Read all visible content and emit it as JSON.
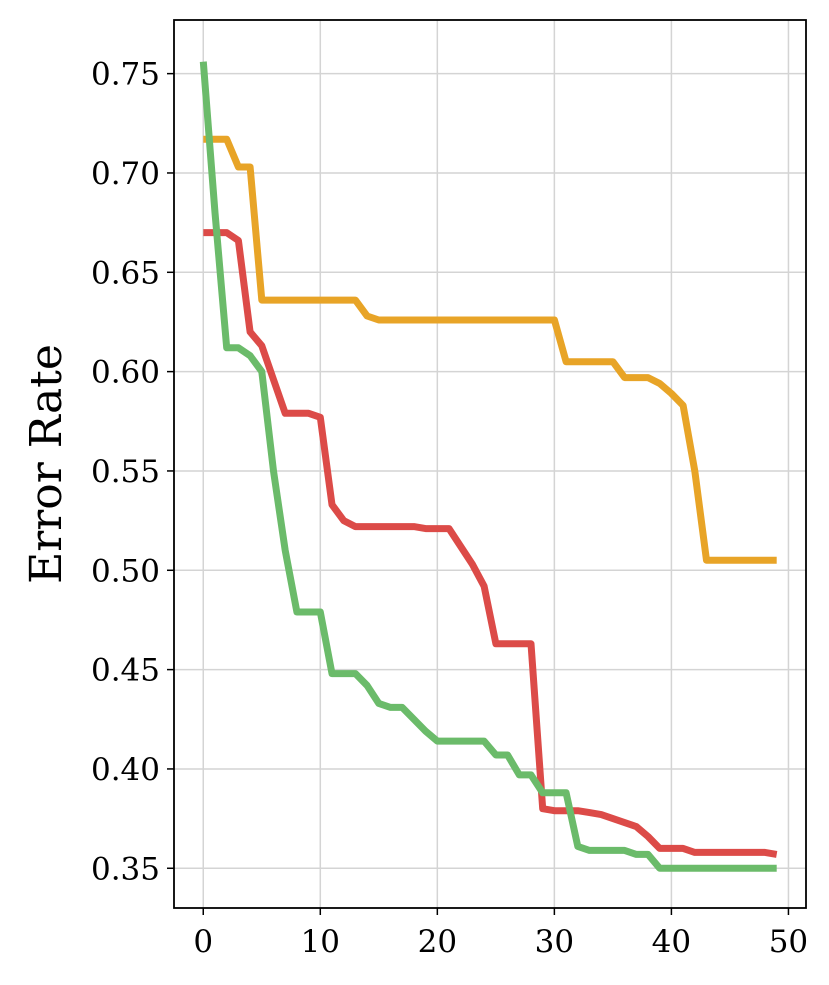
{
  "chart_data": {
    "type": "line",
    "title": "",
    "xlabel": "",
    "ylabel": "Error Rate",
    "xlim": [
      -2.5,
      51.5
    ],
    "ylim": [
      0.33,
      0.777
    ],
    "xticks": [
      0,
      10,
      20,
      30,
      40,
      50
    ],
    "yticks": [
      0.35,
      0.4,
      0.45,
      0.5,
      0.55,
      0.6,
      0.65,
      0.7,
      0.75
    ],
    "xtick_labels": [
      "0",
      "10",
      "20",
      "30",
      "40",
      "50"
    ],
    "ytick_labels": [
      "0.35",
      "0.40",
      "0.45",
      "0.50",
      "0.55",
      "0.60",
      "0.65",
      "0.70",
      "0.75"
    ],
    "grid": true,
    "legend": "none",
    "series": [
      {
        "color": "#e8a427",
        "x": [
          0,
          1,
          2,
          3,
          4,
          5,
          6,
          7,
          8,
          9,
          10,
          11,
          12,
          13,
          14,
          15,
          16,
          17,
          18,
          19,
          20,
          21,
          22,
          23,
          24,
          25,
          26,
          27,
          28,
          29,
          30,
          31,
          32,
          33,
          34,
          35,
          36,
          37,
          38,
          39,
          40,
          41,
          42,
          43,
          44,
          45,
          46,
          47,
          48,
          49
        ],
        "y": [
          0.717,
          0.717,
          0.717,
          0.703,
          0.703,
          0.636,
          0.636,
          0.636,
          0.636,
          0.636,
          0.636,
          0.636,
          0.636,
          0.636,
          0.628,
          0.626,
          0.626,
          0.626,
          0.626,
          0.626,
          0.626,
          0.626,
          0.626,
          0.626,
          0.626,
          0.626,
          0.626,
          0.626,
          0.626,
          0.626,
          0.626,
          0.605,
          0.605,
          0.605,
          0.605,
          0.605,
          0.597,
          0.597,
          0.597,
          0.594,
          0.589,
          0.583,
          0.55,
          0.505,
          0.505,
          0.505,
          0.505,
          0.505,
          0.505,
          0.505
        ]
      },
      {
        "color": "#dc4b48",
        "x": [
          0,
          1,
          2,
          3,
          4,
          5,
          6,
          7,
          8,
          9,
          10,
          11,
          12,
          13,
          14,
          15,
          16,
          17,
          18,
          19,
          20,
          21,
          22,
          23,
          24,
          25,
          26,
          27,
          28,
          29,
          30,
          31,
          32,
          33,
          34,
          35,
          36,
          37,
          38,
          39,
          40,
          41,
          42,
          43,
          44,
          45,
          46,
          47,
          48,
          49
        ],
        "y": [
          0.67,
          0.67,
          0.67,
          0.666,
          0.62,
          0.613,
          0.596,
          0.579,
          0.579,
          0.579,
          0.577,
          0.533,
          0.525,
          0.522,
          0.522,
          0.522,
          0.522,
          0.522,
          0.522,
          0.521,
          0.521,
          0.521,
          0.512,
          0.503,
          0.492,
          0.463,
          0.463,
          0.463,
          0.463,
          0.38,
          0.379,
          0.379,
          0.379,
          0.378,
          0.377,
          0.375,
          0.373,
          0.371,
          0.366,
          0.36,
          0.36,
          0.36,
          0.358,
          0.358,
          0.358,
          0.358,
          0.358,
          0.358,
          0.358,
          0.357
        ]
      },
      {
        "color": "#6bbb6a",
        "x": [
          0,
          1,
          2,
          3,
          4,
          5,
          6,
          7,
          8,
          9,
          10,
          11,
          12,
          13,
          14,
          15,
          16,
          17,
          18,
          19,
          20,
          21,
          22,
          23,
          24,
          25,
          26,
          27,
          28,
          29,
          30,
          31,
          32,
          33,
          34,
          35,
          36,
          37,
          38,
          39,
          40,
          41,
          42,
          43,
          44,
          45,
          46,
          47,
          48,
          49
        ],
        "y": [
          0.756,
          0.68,
          0.612,
          0.612,
          0.608,
          0.6,
          0.55,
          0.51,
          0.479,
          0.479,
          0.479,
          0.448,
          0.448,
          0.448,
          0.442,
          0.433,
          0.431,
          0.431,
          0.425,
          0.419,
          0.414,
          0.414,
          0.414,
          0.414,
          0.414,
          0.407,
          0.407,
          0.397,
          0.397,
          0.388,
          0.388,
          0.388,
          0.361,
          0.359,
          0.359,
          0.359,
          0.359,
          0.357,
          0.357,
          0.35,
          0.35,
          0.35,
          0.35,
          0.35,
          0.35,
          0.35,
          0.35,
          0.35,
          0.35,
          0.35
        ]
      }
    ]
  }
}
